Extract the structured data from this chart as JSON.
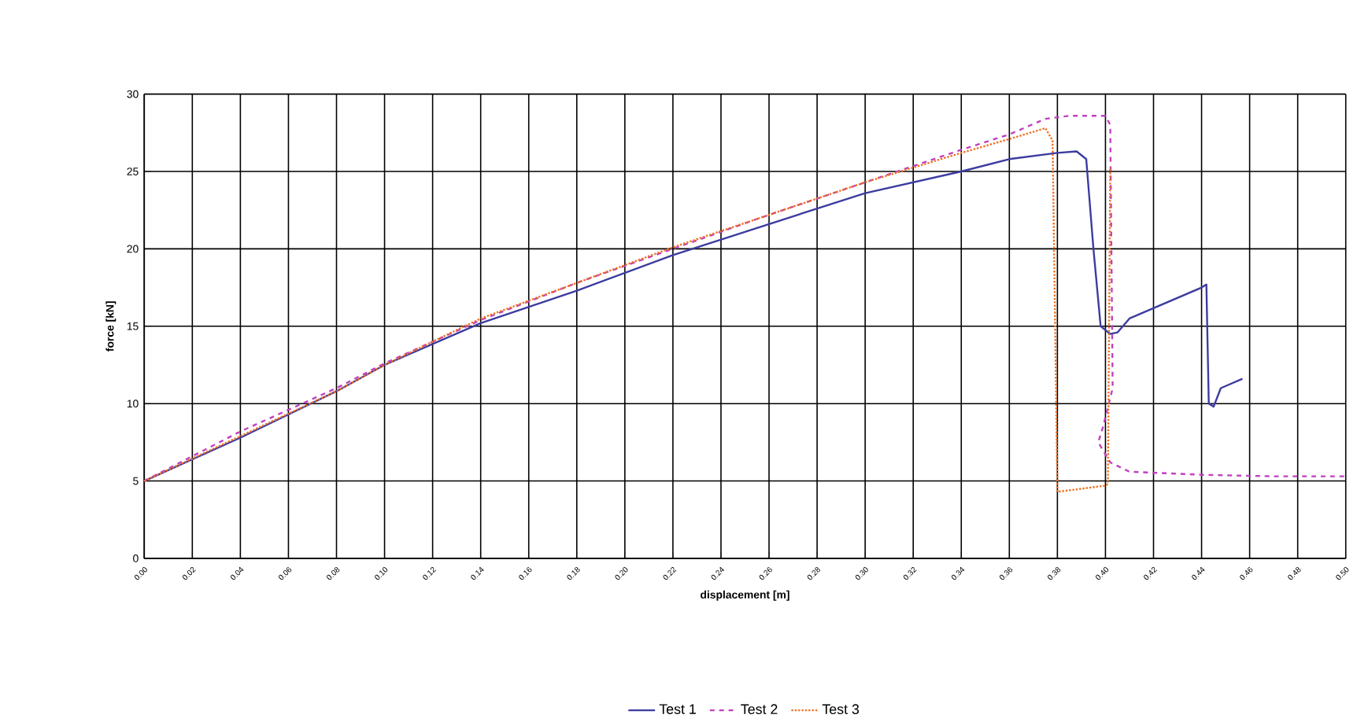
{
  "chart_data": {
    "type": "line",
    "xlabel": "displacement [m]",
    "ylabel": "force [kN]",
    "xlim": [
      0,
      0.5
    ],
    "ylim": [
      0,
      30
    ],
    "xticks": [
      {
        "value": 0,
        "label": "0.00"
      },
      {
        "value": 0.02,
        "label": "0.02"
      },
      {
        "value": 0.04,
        "label": "0.04"
      },
      {
        "value": 0.06,
        "label": "0.06"
      },
      {
        "value": 0.08,
        "label": "0.08"
      },
      {
        "value": 0.1,
        "label": "0.10"
      },
      {
        "value": 0.12,
        "label": "0.12"
      },
      {
        "value": 0.14,
        "label": "0.14"
      },
      {
        "value": 0.16,
        "label": "0.16"
      },
      {
        "value": 0.18,
        "label": "0.18"
      },
      {
        "value": 0.2,
        "label": "0.20"
      },
      {
        "value": 0.22,
        "label": "0.22"
      },
      {
        "value": 0.24,
        "label": "0.24"
      },
      {
        "value": 0.26,
        "label": "0.26"
      },
      {
        "value": 0.28,
        "label": "0.28"
      },
      {
        "value": 0.3,
        "label": "0.30"
      },
      {
        "value": 0.32,
        "label": "0.32"
      },
      {
        "value": 0.34,
        "label": "0.34"
      },
      {
        "value": 0.36,
        "label": "0.36"
      },
      {
        "value": 0.38,
        "label": "0.38"
      },
      {
        "value": 0.4,
        "label": "0.40"
      },
      {
        "value": 0.42,
        "label": "0.42"
      },
      {
        "value": 0.44,
        "label": "0.44"
      },
      {
        "value": 0.46,
        "label": "0.46"
      },
      {
        "value": 0.48,
        "label": "0.48"
      },
      {
        "value": 0.5,
        "label": "0.50"
      }
    ],
    "yticks": [
      0,
      5,
      10,
      15,
      20,
      25,
      30
    ],
    "grid": true,
    "legend": "bottom",
    "marker": "none",
    "series": [
      {
        "name": "Test 1",
        "color": "#3c3ca0",
        "line_style": "solid",
        "x": [
          0,
          0.04,
          0.08,
          0.1,
          0.14,
          0.18,
          0.22,
          0.26,
          0.3,
          0.34,
          0.36,
          0.38,
          0.388,
          0.392,
          0.395,
          0.398,
          0.402,
          0.405,
          0.41,
          0.44,
          0.442,
          0.443,
          0.445,
          0.448,
          0.457
        ],
        "values": [
          5,
          7.8,
          10.8,
          12.5,
          15.2,
          17.3,
          19.6,
          21.6,
          23.6,
          25,
          25.8,
          26.2,
          26.3,
          25.8,
          20,
          15,
          14.5,
          14.6,
          15.5,
          17.5,
          17.7,
          10,
          9.8,
          11,
          11.6
        ]
      },
      {
        "name": "Test 2",
        "color": "#c040c0",
        "line_style": "dashed",
        "x": [
          0,
          0.04,
          0.08,
          0.1,
          0.14,
          0.18,
          0.22,
          0.26,
          0.3,
          0.34,
          0.36,
          0.375,
          0.385,
          0.4,
          0.402,
          0.403,
          0.399,
          0.397,
          0.402,
          0.41,
          0.44,
          0.47,
          0.5
        ],
        "values": [
          5,
          8.2,
          11,
          12.6,
          15.4,
          17.8,
          20,
          22.2,
          24.3,
          26.4,
          27.4,
          28.4,
          28.6,
          28.6,
          28,
          11,
          8.5,
          7.5,
          6.2,
          5.6,
          5.4,
          5.3,
          5.3
        ]
      },
      {
        "name": "Test 3",
        "color": "#f07020",
        "line_style": "dotted",
        "x": [
          0,
          0.04,
          0.08,
          0.1,
          0.14,
          0.18,
          0.22,
          0.26,
          0.3,
          0.34,
          0.36,
          0.375,
          0.378,
          0.38,
          0.4,
          0.401,
          0.402
        ],
        "values": [
          5,
          7.9,
          10.8,
          12.5,
          15.5,
          17.8,
          20.1,
          22.2,
          24.3,
          26.2,
          27.1,
          27.8,
          27,
          4.3,
          4.7,
          4.8,
          25.3
        ]
      }
    ]
  }
}
